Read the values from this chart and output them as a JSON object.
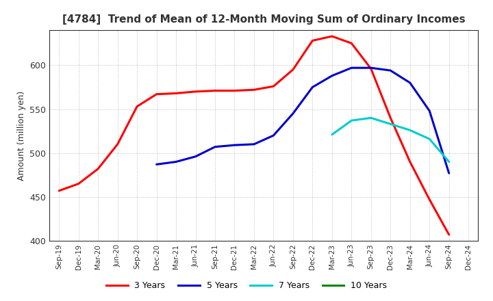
{
  "title": "[4784]  Trend of Mean of 12-Month Moving Sum of Ordinary Incomes",
  "ylabel": "Amount (million yen)",
  "ylim": [
    400,
    640
  ],
  "yticks": [
    400,
    450,
    500,
    550,
    600
  ],
  "background_color": "#ffffff",
  "plot_bg_color": "#ffffff",
  "grid_color": "#aaaaaa",
  "title_color": "#333333",
  "x_labels": [
    "Sep-19",
    "Dec-19",
    "Mar-20",
    "Jun-20",
    "Sep-20",
    "Dec-20",
    "Mar-21",
    "Jun-21",
    "Sep-21",
    "Dec-21",
    "Mar-22",
    "Jun-22",
    "Sep-22",
    "Dec-22",
    "Mar-23",
    "Jun-23",
    "Sep-23",
    "Dec-23",
    "Mar-24",
    "Jun-24",
    "Sep-24",
    "Dec-24"
  ],
  "series": {
    "3 Years": {
      "color": "#ff0000",
      "data": [
        [
          "Sep-19",
          457
        ],
        [
          "Dec-19",
          465
        ],
        [
          "Mar-20",
          482
        ],
        [
          "Jun-20",
          510
        ],
        [
          "Sep-20",
          553
        ],
        [
          "Dec-20",
          567
        ],
        [
          "Mar-21",
          568
        ],
        [
          "Jun-21",
          570
        ],
        [
          "Sep-21",
          571
        ],
        [
          "Dec-21",
          571
        ],
        [
          "Mar-22",
          572
        ],
        [
          "Jun-22",
          576
        ],
        [
          "Sep-22",
          595
        ],
        [
          "Dec-22",
          628
        ],
        [
          "Mar-23",
          633
        ],
        [
          "Jun-23",
          625
        ],
        [
          "Sep-23",
          596
        ],
        [
          "Dec-23",
          540
        ],
        [
          "Mar-24",
          490
        ],
        [
          "Jun-24",
          447
        ],
        [
          "Sep-24",
          407
        ],
        [
          "Dec-24",
          null
        ]
      ]
    },
    "5 Years": {
      "color": "#0000cc",
      "data": [
        [
          "Sep-19",
          null
        ],
        [
          "Dec-19",
          null
        ],
        [
          "Mar-20",
          null
        ],
        [
          "Jun-20",
          null
        ],
        [
          "Sep-20",
          null
        ],
        [
          "Dec-20",
          487
        ],
        [
          "Mar-21",
          490
        ],
        [
          "Jun-21",
          496
        ],
        [
          "Sep-21",
          507
        ],
        [
          "Dec-21",
          509
        ],
        [
          "Mar-22",
          510
        ],
        [
          "Jun-22",
          520
        ],
        [
          "Sep-22",
          545
        ],
        [
          "Dec-22",
          575
        ],
        [
          "Mar-23",
          588
        ],
        [
          "Jun-23",
          597
        ],
        [
          "Sep-23",
          597
        ],
        [
          "Dec-23",
          594
        ],
        [
          "Mar-24",
          580
        ],
        [
          "Jun-24",
          548
        ],
        [
          "Sep-24",
          477
        ],
        [
          "Dec-24",
          null
        ]
      ]
    },
    "7 Years": {
      "color": "#00cccc",
      "data": [
        [
          "Sep-19",
          null
        ],
        [
          "Dec-19",
          null
        ],
        [
          "Mar-20",
          null
        ],
        [
          "Jun-20",
          null
        ],
        [
          "Sep-20",
          null
        ],
        [
          "Dec-20",
          null
        ],
        [
          "Mar-21",
          null
        ],
        [
          "Jun-21",
          null
        ],
        [
          "Sep-21",
          null
        ],
        [
          "Dec-21",
          null
        ],
        [
          "Mar-22",
          null
        ],
        [
          "Jun-22",
          null
        ],
        [
          "Sep-22",
          null
        ],
        [
          "Dec-22",
          null
        ],
        [
          "Mar-23",
          521
        ],
        [
          "Jun-23",
          537
        ],
        [
          "Sep-23",
          540
        ],
        [
          "Dec-23",
          533
        ],
        [
          "Mar-24",
          526
        ],
        [
          "Jun-24",
          516
        ],
        [
          "Sep-24",
          490
        ],
        [
          "Dec-24",
          null
        ]
      ]
    },
    "10 Years": {
      "color": "#008800",
      "data": [
        [
          "Sep-19",
          null
        ],
        [
          "Dec-19",
          null
        ],
        [
          "Mar-20",
          null
        ],
        [
          "Jun-20",
          null
        ],
        [
          "Sep-20",
          null
        ],
        [
          "Dec-20",
          null
        ],
        [
          "Mar-21",
          null
        ],
        [
          "Jun-21",
          null
        ],
        [
          "Sep-21",
          null
        ],
        [
          "Dec-21",
          null
        ],
        [
          "Mar-22",
          null
        ],
        [
          "Jun-22",
          null
        ],
        [
          "Sep-22",
          null
        ],
        [
          "Dec-22",
          null
        ],
        [
          "Mar-23",
          null
        ],
        [
          "Jun-23",
          null
        ],
        [
          "Sep-23",
          null
        ],
        [
          "Dec-23",
          null
        ],
        [
          "Mar-24",
          null
        ],
        [
          "Jun-24",
          null
        ],
        [
          "Sep-24",
          null
        ],
        [
          "Dec-24",
          null
        ]
      ]
    }
  },
  "legend_labels": [
    "3 Years",
    "5 Years",
    "7 Years",
    "10 Years"
  ],
  "legend_colors": [
    "#ff0000",
    "#0000cc",
    "#00cccc",
    "#008800"
  ],
  "linewidth": 2.2
}
